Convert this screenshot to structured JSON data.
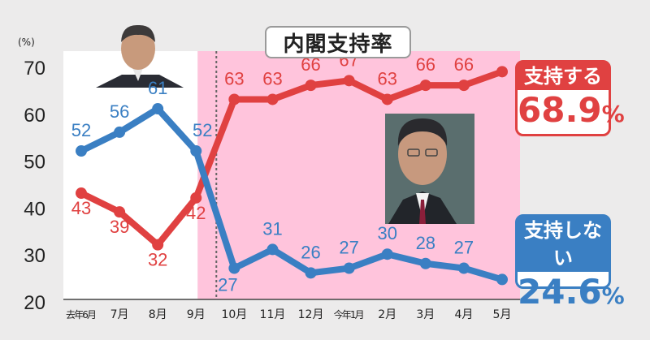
{
  "chart_data": {
    "type": "line",
    "title": "内閣支持率",
    "y_unit_label": "(%)",
    "ylim": [
      20,
      70
    ],
    "y_ticks": [
      "20",
      "30",
      "40",
      "50",
      "60",
      "70"
    ],
    "categories": [
      "去年6月",
      "7月",
      "8月",
      "9月",
      "10月",
      "11月",
      "12月",
      "今年1月",
      "2月",
      "3月",
      "4月",
      "5月"
    ],
    "series": [
      {
        "name": "支持する",
        "color": "#e04141",
        "values": [
          43,
          39,
          32,
          42,
          63,
          63,
          66,
          67,
          63,
          66,
          66,
          68.9
        ],
        "value_labels": [
          "43",
          "39",
          "32",
          "42",
          "63",
          "63",
          "66",
          "67",
          "63",
          "66",
          "66",
          ""
        ]
      },
      {
        "name": "支持しない",
        "color": "#3a7fc3",
        "values": [
          52,
          56,
          61,
          52,
          27,
          31,
          26,
          27,
          30,
          28,
          27,
          24.6
        ],
        "value_labels": [
          "52",
          "56",
          "61",
          "52",
          "27",
          "31",
          "26",
          "27",
          "30",
          "28",
          "27",
          ""
        ]
      }
    ],
    "background_regions": [
      {
        "from_index": 0,
        "to_index": 3,
        "color": "#ffffff"
      },
      {
        "from_index": 3,
        "to_index": 11,
        "color": "#ffc4dc"
      }
    ],
    "grid": false
  },
  "legend": {
    "support_label": "支持する",
    "support_value_main": "68.9",
    "support_value_unit": "%",
    "nonsupport_label": "支持しない",
    "nonsupport_value_main": "24.6",
    "nonsupport_value_unit": "%"
  },
  "icons": [
    "suga-portrait-icon",
    "kishida-portrait-icon"
  ]
}
